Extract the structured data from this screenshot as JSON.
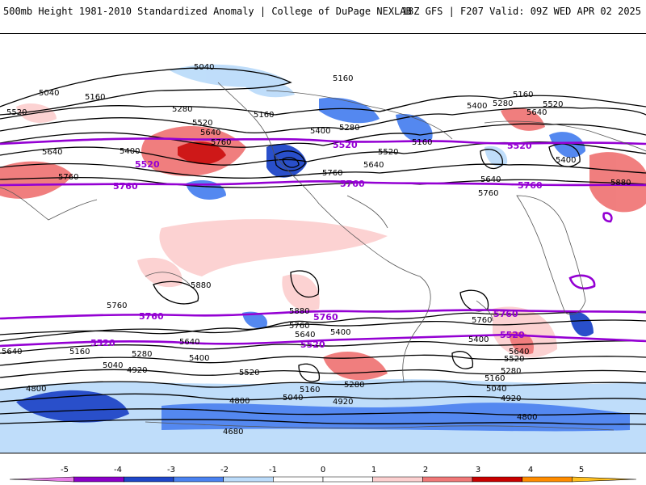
{
  "header": {
    "left": "500mb Height 1981-2010 Standardized Anomaly | College of DuPage NEXLAB",
    "right": "18Z GFS | F207 Valid: 09Z WED APR 02 2025"
  },
  "colors": {
    "neg5": "#e680e6",
    "neg4": "#8b00c8",
    "neg3": "#1e46c8",
    "neg2": "#4b82f0",
    "neg1": "#bcdcfa",
    "zero": "#ffffff",
    "pos1": "#fcd0d0",
    "pos2": "#f07878",
    "pos3": "#c80000",
    "pos4": "#ff8c00",
    "pos5": "#ffc020",
    "highlight_contour": "#9400d3"
  },
  "colorbar": {
    "ticks": [
      "-5",
      "-4",
      "-3",
      "-2",
      "-1",
      "0",
      "1",
      "2",
      "3",
      "4",
      "5"
    ]
  },
  "contour_labels": [
    "5040",
    "5160",
    "5280",
    "5400",
    "5520",
    "5640",
    "5760",
    "5880",
    "4920",
    "4800",
    "4680"
  ],
  "highlight_labels": [
    "5520",
    "5760"
  ]
}
